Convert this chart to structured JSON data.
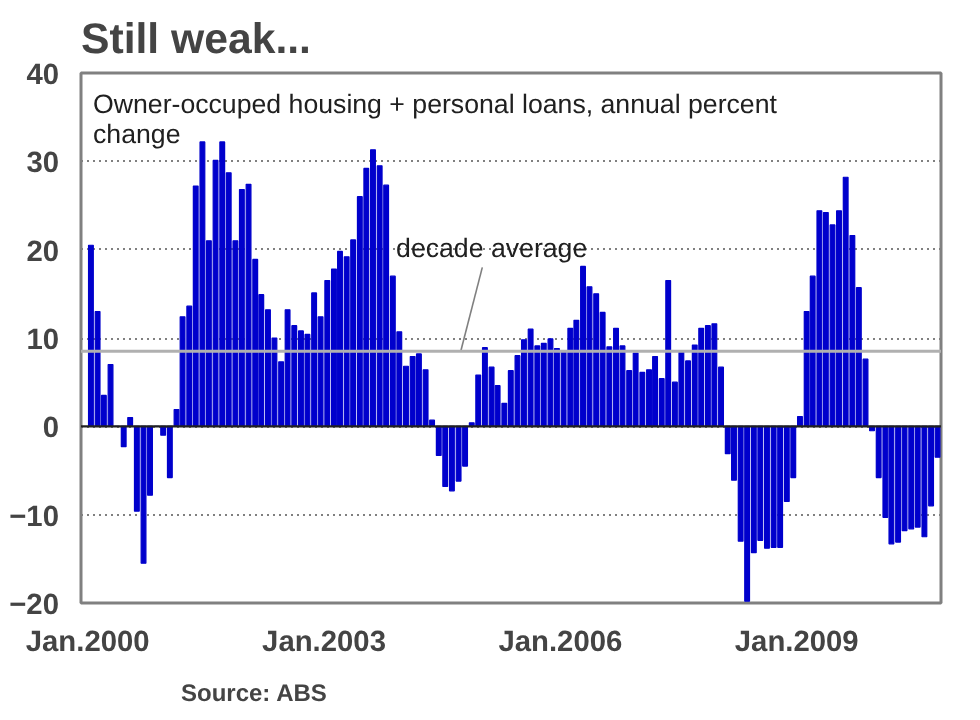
{
  "chart_data": {
    "type": "bar",
    "title": "Still weak...",
    "subtitle": "Owner-occuped housing + personal loans, annual percent change",
    "x": [
      "2000-01",
      "2000-02",
      "2000-03",
      "2000-04",
      "2000-05",
      "2000-06",
      "2000-07",
      "2000-08",
      "2000-09",
      "2000-10",
      "2000-11",
      "2000-12",
      "2001-01",
      "2001-02",
      "2001-03",
      "2001-04",
      "2001-05",
      "2001-06",
      "2001-07",
      "2001-08",
      "2001-09",
      "2001-10",
      "2001-11",
      "2001-12",
      "2002-01",
      "2002-02",
      "2002-03",
      "2002-04",
      "2002-05",
      "2002-06",
      "2002-07",
      "2002-08",
      "2002-09",
      "2002-10",
      "2002-11",
      "2002-12",
      "2003-01",
      "2003-02",
      "2003-03",
      "2003-04",
      "2003-05",
      "2003-06",
      "2003-07",
      "2003-08",
      "2003-09",
      "2003-10",
      "2003-11",
      "2003-12",
      "2004-01",
      "2004-02",
      "2004-03",
      "2004-04",
      "2004-05",
      "2004-06",
      "2004-07",
      "2004-08",
      "2004-09",
      "2004-10",
      "2004-11",
      "2004-12",
      "2005-01",
      "2005-02",
      "2005-03",
      "2005-04",
      "2005-05",
      "2005-06",
      "2005-07",
      "2005-08",
      "2005-09",
      "2005-10",
      "2005-11",
      "2005-12",
      "2006-01",
      "2006-02",
      "2006-03",
      "2006-04",
      "2006-05",
      "2006-06",
      "2006-07",
      "2006-08",
      "2006-09",
      "2006-10",
      "2006-11",
      "2006-12",
      "2007-01",
      "2007-02",
      "2007-03",
      "2007-04",
      "2007-05",
      "2007-06",
      "2007-07",
      "2007-08",
      "2007-09",
      "2007-10",
      "2007-11",
      "2007-12",
      "2008-01",
      "2008-02",
      "2008-03",
      "2008-04",
      "2008-05",
      "2008-06",
      "2008-07",
      "2008-08",
      "2008-09",
      "2008-10",
      "2008-11",
      "2008-12",
      "2009-01",
      "2009-02",
      "2009-03",
      "2009-04",
      "2009-05",
      "2009-06",
      "2009-07",
      "2009-08",
      "2009-09",
      "2009-10",
      "2009-11",
      "2009-12",
      "2010-01",
      "2010-02",
      "2010-03",
      "2010-04",
      "2010-05",
      "2010-06",
      "2010-07",
      "2010-08",
      "2010-09",
      "2010-10"
    ],
    "values": [
      20.5,
      13,
      3.5,
      7,
      0,
      -2.3,
      1,
      -9.6,
      -15.5,
      -7.8,
      0,
      -1,
      -5.8,
      1.9,
      12.4,
      13.6,
      27.2,
      32.2,
      21,
      30.1,
      32.2,
      28.7,
      21,
      26.8,
      27.4,
      18.9,
      14.9,
      13.2,
      10,
      7.3,
      13.2,
      11.4,
      10.8,
      10.4,
      15.1,
      12.4,
      16.5,
      17.8,
      19.8,
      19.2,
      21.1,
      26,
      29.2,
      31.3,
      29.5,
      27.3,
      17,
      10.7,
      6.8,
      7.9,
      8.2,
      6.4,
      0.7,
      -3.3,
      -6.8,
      -7.3,
      -6.2,
      -4.5,
      0.4,
      5.8,
      8.9,
      6.7,
      4.6,
      2.6,
      6.3,
      8,
      9.8,
      11,
      9.1,
      9.4,
      9.9,
      8.8,
      8.5,
      11.1,
      12,
      18.1,
      15.8,
      15,
      12.9,
      9,
      11.1,
      9.1,
      6.3,
      8.3,
      6.1,
      6.4,
      7.9,
      5.4,
      16.5,
      5,
      8.4,
      7.4,
      9.2,
      11.1,
      11.4,
      11.6,
      6.7,
      -3.1,
      -6.1,
      -13,
      -19.8,
      -14.3,
      -12.9,
      -13.8,
      -13.7,
      -13.7,
      -8.5,
      -5.8,
      1.1,
      13,
      17,
      24.4,
      24.2,
      22.8,
      24.4,
      28.2,
      21.6,
      15.7,
      7.6,
      -0.5,
      -5.8,
      -10.3,
      -13.3,
      -13.1,
      -11.8,
      -11.6,
      -11.4,
      -12.5,
      -9,
      -3.5
    ],
    "color": "#0000cc",
    "xlim": [
      "1999-12",
      "2010-11"
    ],
    "xticks": [
      {
        "value": "2000-01",
        "label": "Jan.2000"
      },
      {
        "value": "2003-01",
        "label": "Jan.2003"
      },
      {
        "value": "2006-01",
        "label": "Jan.2006"
      },
      {
        "value": "2009-01",
        "label": "Jan.2009"
      }
    ],
    "ylim": [
      -20,
      40
    ],
    "yticks": [
      -20,
      -10,
      0,
      10,
      20,
      30,
      40
    ],
    "grid": "y",
    "ref_lines": [
      {
        "axis": "y",
        "value": 8.5,
        "label": "decade average",
        "color": "#b0b0b0"
      }
    ],
    "annotations": [
      "Source: ABS"
    ]
  }
}
